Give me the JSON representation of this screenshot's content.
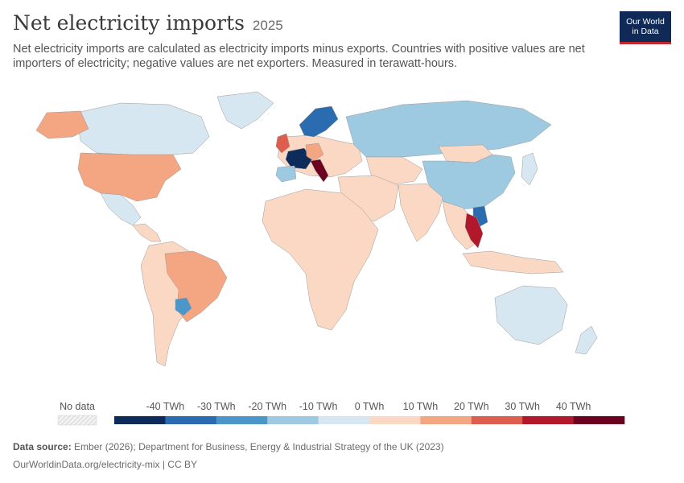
{
  "header": {
    "title": "Net electricity imports",
    "year": "2025",
    "subtitle": "Net electricity imports are calculated as electricity imports minus exports. Countries with positive values are net importers of electricity; negative values are net exporters. Measured in terawatt-hours."
  },
  "logo": {
    "line1": "Our World",
    "line2": "in Data"
  },
  "legend": {
    "no_data_label": "No data",
    "bins": [
      {
        "label": "-40 TWh",
        "color": "#0d2c5b"
      },
      {
        "label": "-30 TWh",
        "color": "#2b6cb0"
      },
      {
        "label": "-20 TWh",
        "color": "#4b97c9"
      },
      {
        "label": "-10 TWh",
        "color": "#9ecae1"
      },
      {
        "label": "0 TWh",
        "color": "#d6e7f2"
      },
      {
        "label": "10 TWh",
        "color": "#fbd8c4"
      },
      {
        "label": "20 TWh",
        "color": "#f4a582"
      },
      {
        "label": "30 TWh",
        "color": "#dd5e4f"
      },
      {
        "label": "40 TWh",
        "color": "#b2182b"
      },
      {
        "label": "",
        "color": "#6b0020"
      }
    ]
  },
  "footer": {
    "source_label": "Data source:",
    "source_text": "Ember (2026); Department for Business, Energy & Industrial Strategy of the UK (2023)",
    "url_text": "OurWorldinData.org/electricity-mix | CC BY"
  },
  "map_regions": [
    {
      "name": "north-america-region",
      "color": "#d6e7f2"
    },
    {
      "name": "united-states-region",
      "color": "#f4a582"
    },
    {
      "name": "alaska-region",
      "color": "#f4a582"
    },
    {
      "name": "mexico-region",
      "color": "#d6e7f2"
    },
    {
      "name": "central-america-region",
      "color": "#fbd8c4"
    },
    {
      "name": "south-america-region",
      "color": "#fbd8c4"
    },
    {
      "name": "brazil-region",
      "color": "#f4a582"
    },
    {
      "name": "paraguay-region",
      "color": "#4b97c9"
    },
    {
      "name": "greenland-region",
      "color": "#d6e7f2"
    },
    {
      "name": "africa-region",
      "color": "#fbd8c4"
    },
    {
      "name": "europe-region",
      "color": "#fbd8c4"
    },
    {
      "name": "france-region",
      "color": "#0d2c5b"
    },
    {
      "name": "italy-region",
      "color": "#6b0020"
    },
    {
      "name": "uk-region",
      "color": "#dd5e4f"
    },
    {
      "name": "germany-region",
      "color": "#f4a582"
    },
    {
      "name": "spain-region",
      "color": "#9ecae1"
    },
    {
      "name": "scandinavia-region",
      "color": "#2b6cb0"
    },
    {
      "name": "russia-region",
      "color": "#9ecae1"
    },
    {
      "name": "central-asia-region",
      "color": "#fbd8c4"
    },
    {
      "name": "middle-east-region",
      "color": "#fbd8c4"
    },
    {
      "name": "india-region",
      "color": "#fbd8c4"
    },
    {
      "name": "china-region",
      "color": "#9ecae1"
    },
    {
      "name": "mongolia-region",
      "color": "#fbd8c4"
    },
    {
      "name": "southeast-asia-region",
      "color": "#fbd8c4"
    },
    {
      "name": "thailand-region",
      "color": "#b2182b"
    },
    {
      "name": "laos-region",
      "color": "#2b6cb0"
    },
    {
      "name": "indonesia-region",
      "color": "#fbd8c4"
    },
    {
      "name": "japan-region",
      "color": "#d6e7f2"
    },
    {
      "name": "australia-region",
      "color": "#d6e7f2"
    },
    {
      "name": "new-zealand-region",
      "color": "#d6e7f2"
    }
  ]
}
